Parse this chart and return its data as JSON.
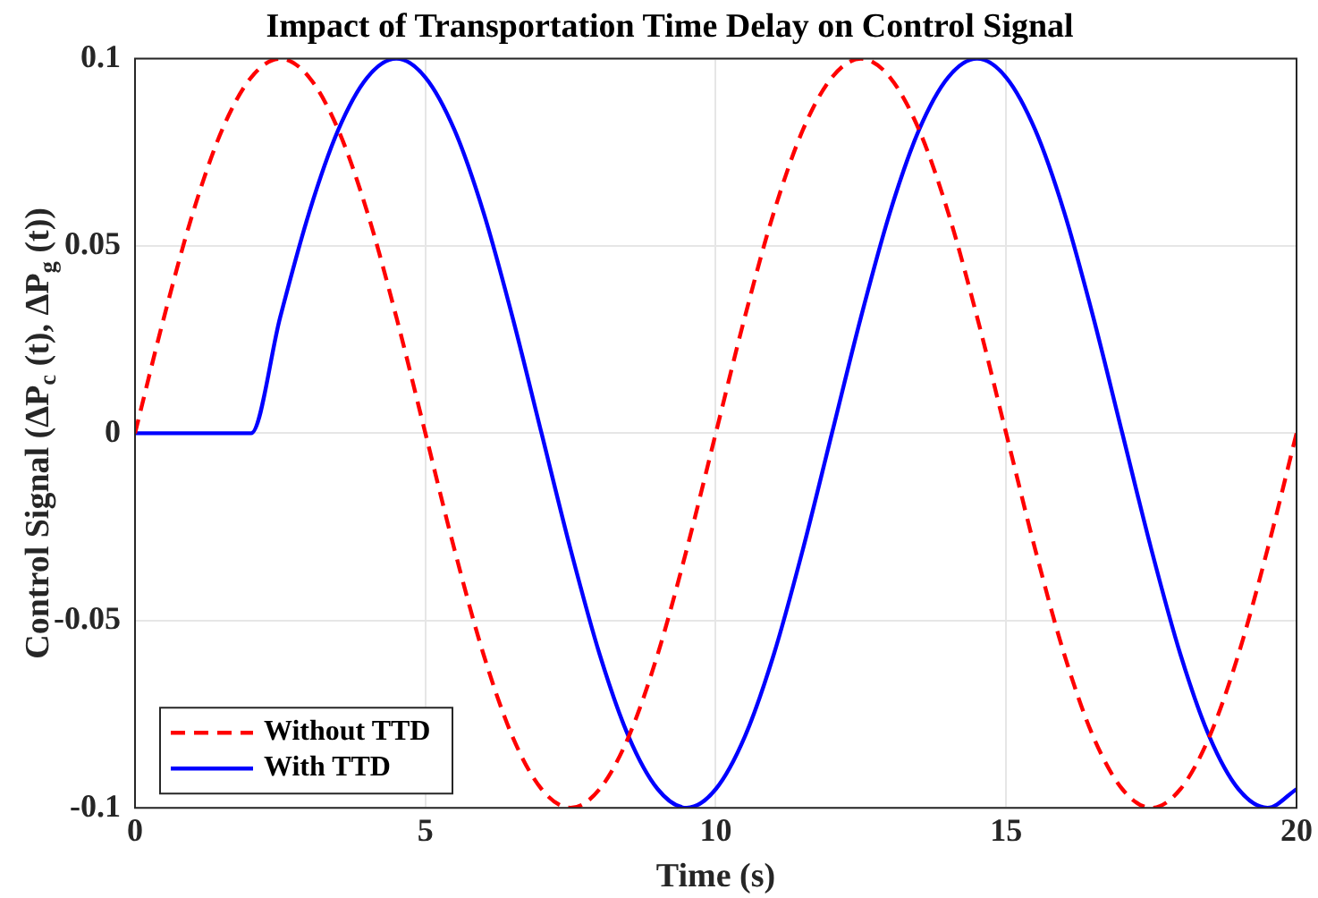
{
  "chart_data": {
    "type": "line",
    "title": "Impact of Transportation Time Delay on Control Signal",
    "xlabel": "Time (s)",
    "ylabel": "Control Signal (ΔP$_{c}$ (t), ΔP$_{g}$ (t))",
    "xlim": [
      0,
      20
    ],
    "xticks": [
      0,
      5,
      10,
      15,
      20
    ],
    "ylim": [
      -0.1,
      0.1
    ],
    "yticks": [
      -0.1,
      -0.05,
      0,
      0.05,
      0.1
    ],
    "grid": true,
    "legend": "bottom left",
    "marker": "none",
    "series": [
      {
        "name": "Without TTD",
        "color": "#ff0000",
        "line_style": "dashed",
        "x": [
          0,
          0.5,
          1,
          1.5,
          2,
          2.5,
          3,
          3.5,
          4,
          4.5,
          5,
          5.5,
          6,
          6.5,
          7,
          7.5,
          8,
          8.5,
          9,
          9.5,
          10,
          10.5,
          11,
          11.5,
          12,
          12.5,
          13,
          13.5,
          14,
          14.5,
          15,
          15.5,
          16,
          16.5,
          17,
          17.5,
          18,
          18.5,
          19,
          19.5,
          20
        ],
        "values": [
          0,
          0.031,
          0.059,
          0.081,
          0.095,
          0.1,
          0.095,
          0.081,
          0.059,
          0.031,
          0,
          -0.031,
          -0.059,
          -0.081,
          -0.095,
          -0.1,
          -0.095,
          -0.081,
          -0.059,
          -0.031,
          0,
          0.031,
          0.059,
          0.081,
          0.095,
          0.1,
          0.095,
          0.081,
          0.059,
          0.031,
          0,
          -0.031,
          -0.059,
          -0.081,
          -0.095,
          -0.1,
          -0.095,
          -0.081,
          -0.059,
          -0.031,
          0
        ]
      },
      {
        "name": "With TTD",
        "color": "#0000ff",
        "line_style": "solid",
        "x": [
          0,
          2,
          2.5,
          3,
          3.5,
          4,
          4.5,
          5,
          5.5,
          6,
          6.5,
          7,
          7.5,
          8,
          8.5,
          9,
          9.5,
          10,
          10.5,
          11,
          11.5,
          12,
          12.5,
          13,
          13.5,
          14,
          14.5,
          15,
          15.5,
          16,
          16.5,
          17,
          17.5,
          18,
          18.5,
          19,
          19.5,
          20
        ],
        "values": [
          0,
          0,
          0.031,
          0.059,
          0.081,
          0.095,
          0.1,
          0.095,
          0.081,
          0.059,
          0.031,
          0,
          -0.031,
          -0.059,
          -0.081,
          -0.095,
          -0.1,
          -0.095,
          -0.081,
          -0.059,
          -0.031,
          0,
          0.031,
          0.059,
          0.081,
          0.095,
          0.1,
          0.095,
          0.081,
          0.059,
          0.031,
          0,
          -0.031,
          -0.059,
          -0.081,
          -0.095,
          -0.1,
          -0.095
        ]
      }
    ]
  }
}
